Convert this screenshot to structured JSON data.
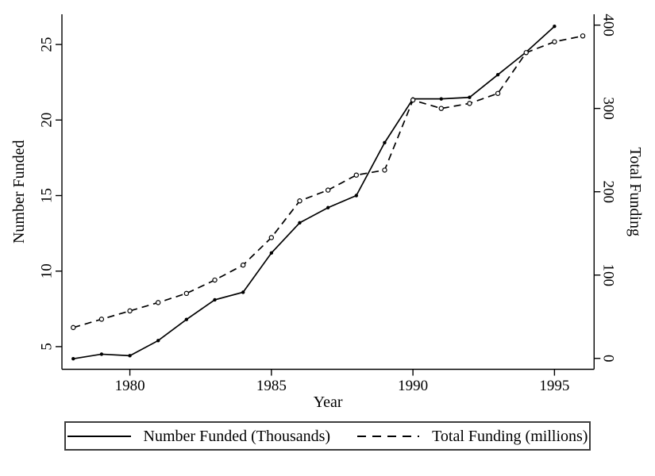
{
  "figure": {
    "background": "#ffffff",
    "foreground": "#000000"
  },
  "chart_data": {
    "type": "line",
    "title": "",
    "xlabel": "Year",
    "left_ylabel": "Number Funded",
    "right_ylabel": "Total Funding",
    "grid": false,
    "legend_position": "bottom",
    "xlim": [
      1977.6,
      1996.4
    ],
    "left_ylim": [
      3.5,
      27.0
    ],
    "right_ylim": [
      -13.1,
      413.0
    ],
    "x_ticks": [
      1980,
      1985,
      1990,
      1995
    ],
    "left_ticks": [
      5,
      10,
      15,
      20,
      25
    ],
    "right_ticks": [
      0,
      100,
      200,
      300,
      400
    ],
    "series": [
      {
        "name": "Number Funded (Thousands)",
        "axis": "left",
        "line_style": "solid",
        "marker": "filled-circle",
        "color": "#000000",
        "x": [
          1978,
          1979,
          1980,
          1981,
          1982,
          1983,
          1984,
          1985,
          1986,
          1987,
          1988,
          1989,
          1990,
          1991,
          1992,
          1993,
          1994,
          1995
        ],
        "y": [
          4.2,
          4.5,
          4.4,
          5.4,
          6.8,
          8.1,
          8.6,
          11.2,
          13.2,
          14.2,
          15.0,
          18.5,
          21.4,
          21.4,
          21.5,
          23.0,
          24.5,
          26.2
        ]
      },
      {
        "name": "Total Funding (millions)",
        "axis": "right",
        "line_style": "dashed",
        "marker": "open-circle",
        "color": "#000000",
        "x": [
          1978,
          1979,
          1980,
          1981,
          1982,
          1983,
          1984,
          1985,
          1986,
          1987,
          1988,
          1989,
          1990,
          1991,
          1992,
          1993,
          1994,
          1995,
          1996
        ],
        "y": [
          37,
          47,
          57,
          67,
          78,
          94,
          112,
          145,
          189,
          202,
          220,
          226,
          310,
          300,
          306,
          318,
          367,
          380,
          387
        ]
      }
    ]
  }
}
